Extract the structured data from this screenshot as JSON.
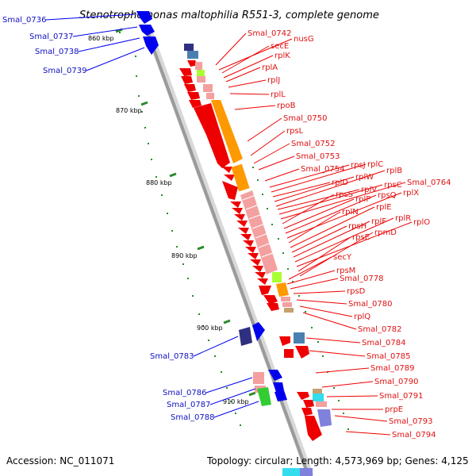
{
  "title": "Stenotrophomonas maltophilia R551-3, complete genome",
  "footer": {
    "accession": "Accession: NC_011071",
    "summary": "Topology: circular; Length: 4,573,969 bp; Genes: 4,125"
  },
  "ticks": [
    "860 kbp",
    "870 kbp",
    "880 kbp",
    "890 kbp",
    "900 kbp",
    "910 kbp"
  ],
  "labels_left": [
    "Smal_0736",
    "Smal_0737",
    "Smal_0738",
    "Smal_0739",
    "Smal_0783",
    "Smal_0786",
    "Smal_0787",
    "Smal_0788"
  ],
  "labels_right": [
    "Smal_0742",
    "nusG",
    "secE",
    "rplK",
    "rplA",
    "rplJ",
    "rplL",
    "rpoB",
    "Smal_0750",
    "rpsL",
    "Smal_0752",
    "Smal_0753",
    "Smal_0754",
    "rpsJ",
    "rplC",
    "rplD",
    "rplW",
    "rplB",
    "rplV",
    "rpsC",
    "Smal_0764",
    "rpsS",
    "rplP",
    "rpsQ",
    "rplX",
    "rplN",
    "rplE",
    "rpsH",
    "rplF",
    "rplR",
    "rplO",
    "rpsE",
    "rpmD",
    "secY",
    "rpsM",
    "Smal_0778",
    "rpsD",
    "Smal_0780",
    "rplQ",
    "Smal_0782",
    "Smal_0784",
    "Smal_0785",
    "Smal_0789",
    "Smal_0790",
    "Smal_0791",
    "prpE",
    "Smal_0793",
    "Smal_0794"
  ],
  "colors": {
    "forward_feature": "#0000ee",
    "reverse_feature": "#ee0000",
    "backbone": "#a0a0a0",
    "tick_mark": "#2a8a2a",
    "orange": "#ff9900",
    "pink": "#f4a0a0",
    "lime": "#aaff33",
    "green": "#33cc33",
    "navy": "#303080",
    "steelblue": "#4a80b0",
    "cyan": "#33ddee",
    "purple": "#8080dd"
  }
}
